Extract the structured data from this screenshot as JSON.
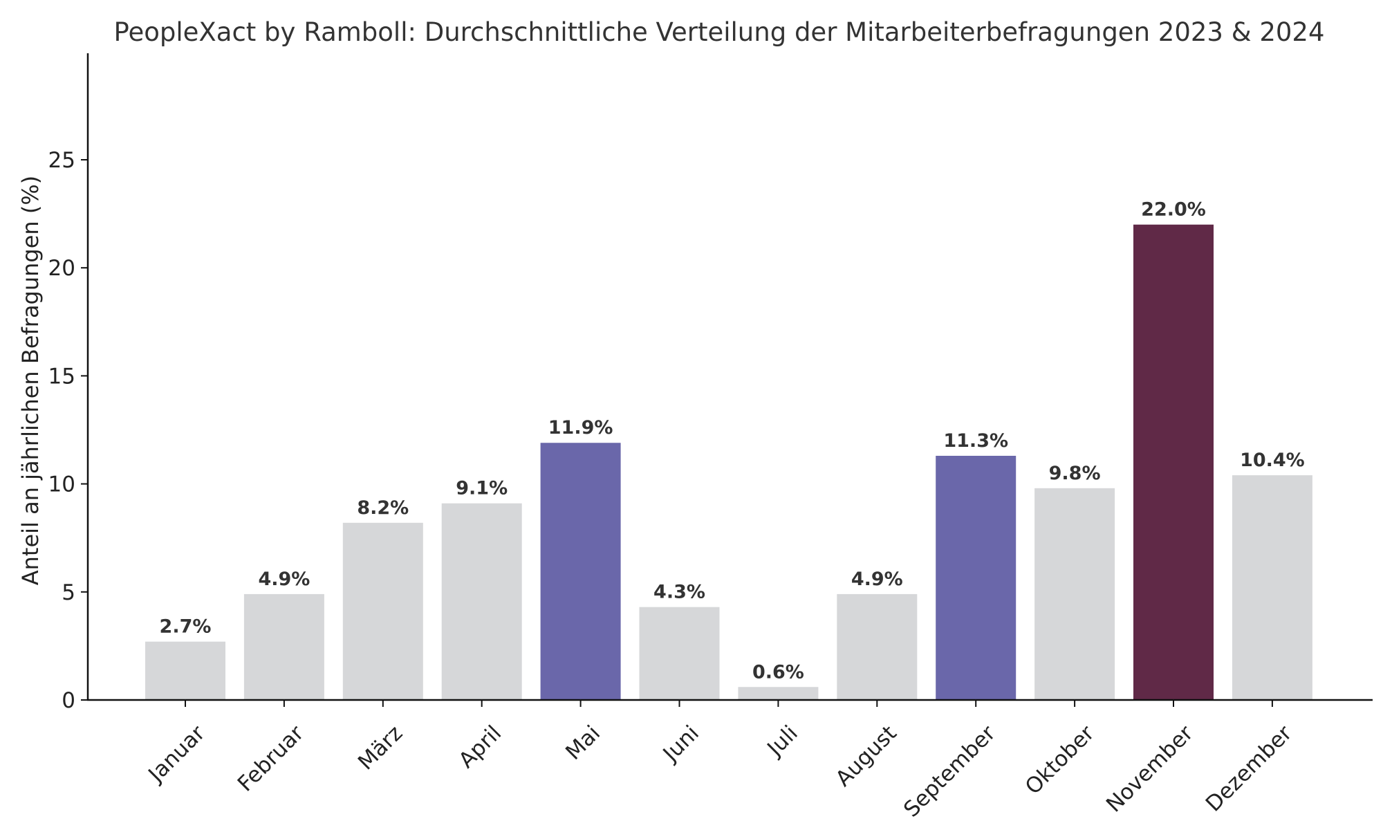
{
  "chart_data": {
    "type": "bar",
    "title": "PeopleXact by Ramboll: Durchschnittliche Verteilung der Mitarbeiterbefragungen 2023 & 2024",
    "xlabel": "",
    "ylabel": "Anteil an jährlichen Befragungen (%)",
    "ylim": [
      0,
      30
    ],
    "yticks": [
      0,
      5,
      10,
      15,
      20,
      25
    ],
    "categories": [
      "Januar",
      "Februar",
      "März",
      "April",
      "Mai",
      "Juni",
      "Juli",
      "August",
      "September",
      "Oktober",
      "November",
      "Dezember"
    ],
    "values": [
      2.7,
      4.9,
      8.2,
      9.1,
      11.9,
      4.3,
      0.6,
      4.9,
      11.3,
      9.8,
      22.0,
      10.4
    ],
    "data_labels": [
      "2.7%",
      "4.9%",
      "8.2%",
      "9.1%",
      "11.9%",
      "4.3%",
      "0.6%",
      "4.9%",
      "11.3%",
      "9.8%",
      "22.0%",
      "10.4%"
    ],
    "bar_colors": [
      "#d6d7d9",
      "#d6d7d9",
      "#d6d7d9",
      "#d6d7d9",
      "#6a67aa",
      "#d6d7d9",
      "#d6d7d9",
      "#d6d7d9",
      "#6a67aa",
      "#d6d7d9",
      "#602947",
      "#d6d7d9"
    ],
    "grid": false,
    "legend": "none"
  }
}
